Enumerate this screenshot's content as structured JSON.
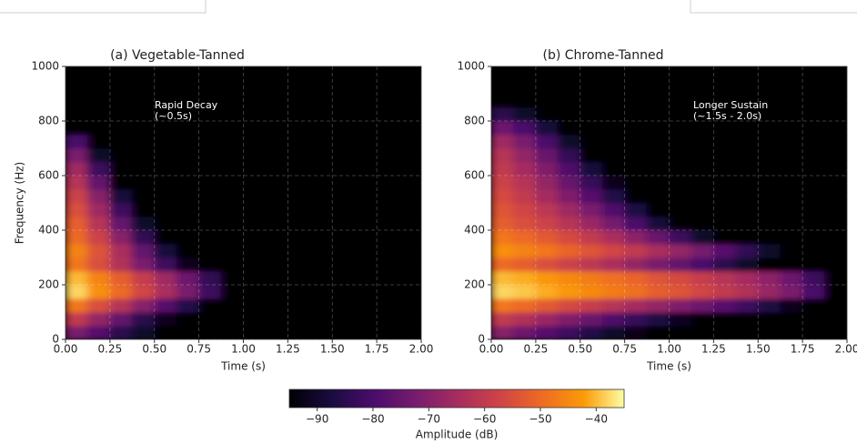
{
  "chart_data": [
    {
      "type": "heatmap",
      "title": "(a) Vegetable-Tanned",
      "x_label": "Time (s)",
      "y_label": "Frequency (Hz)",
      "annotation": [
        "Rapid Decay",
        "(~0.5s)"
      ],
      "xlim": [
        0,
        2
      ],
      "ylim": [
        0,
        1000
      ],
      "xticks": [
        {
          "value": 0,
          "label": "0.00"
        },
        {
          "value": 0.25,
          "label": "0.25"
        },
        {
          "value": 0.5,
          "label": "0.50"
        },
        {
          "value": 0.75,
          "label": "0.75"
        },
        {
          "value": 1,
          "label": "1.00"
        },
        {
          "value": 1.25,
          "label": "1.25"
        },
        {
          "value": 1.5,
          "label": "1.50"
        },
        {
          "value": 1.75,
          "label": "1.75"
        },
        {
          "value": 2,
          "label": "2.00"
        }
      ],
      "yticks": [
        0,
        200,
        400,
        600,
        800,
        1000
      ],
      "grid": true,
      "xbins": [
        0,
        0.125,
        0.25,
        0.375,
        0.5,
        0.625,
        0.75,
        0.875,
        1,
        1.125,
        1.25,
        1.375,
        1.5,
        1.625,
        1.75,
        1.875,
        2
      ],
      "ybins": [
        0,
        50,
        100,
        150,
        200,
        250,
        300,
        350,
        400,
        450,
        500,
        550,
        600,
        650,
        700,
        750,
        800,
        850,
        900,
        950,
        1000
      ],
      "z": [
        [
          -72,
          -78,
          -85,
          -90,
          -95,
          -95,
          -95,
          -95,
          -95,
          -95,
          -95,
          -95,
          -95,
          -95,
          -95,
          -95
        ],
        [
          -60,
          -68,
          -76,
          -85,
          -92,
          -95,
          -95,
          -95,
          -95,
          -95,
          -95,
          -95,
          -95,
          -95,
          -95,
          -95
        ],
        [
          -48,
          -55,
          -62,
          -70,
          -78,
          -86,
          -95,
          -95,
          -95,
          -95,
          -95,
          -95,
          -95,
          -95,
          -95,
          -95
        ],
        [
          -38,
          -44,
          -50,
          -57,
          -64,
          -72,
          -82,
          -95,
          -95,
          -95,
          -95,
          -95,
          -95,
          -95,
          -95,
          -95
        ],
        [
          -40,
          -46,
          -52,
          -59,
          -66,
          -74,
          -84,
          -95,
          -95,
          -95,
          -95,
          -95,
          -95,
          -95,
          -95,
          -95
        ],
        [
          -48,
          -55,
          -63,
          -72,
          -82,
          -92,
          -95,
          -95,
          -95,
          -95,
          -95,
          -95,
          -95,
          -95,
          -95,
          -95
        ],
        [
          -46,
          -54,
          -64,
          -76,
          -88,
          -95,
          -95,
          -95,
          -95,
          -95,
          -95,
          -95,
          -95,
          -95,
          -95,
          -95
        ],
        [
          -50,
          -58,
          -70,
          -84,
          -95,
          -95,
          -95,
          -95,
          -95,
          -95,
          -95,
          -95,
          -95,
          -95,
          -95,
          -95
        ],
        [
          -52,
          -62,
          -76,
          -90,
          -95,
          -95,
          -95,
          -95,
          -95,
          -95,
          -95,
          -95,
          -95,
          -95,
          -95,
          -95
        ],
        [
          -55,
          -66,
          -82,
          -95,
          -95,
          -95,
          -95,
          -95,
          -95,
          -95,
          -95,
          -95,
          -95,
          -95,
          -95,
          -95
        ],
        [
          -58,
          -70,
          -88,
          -95,
          -95,
          -95,
          -95,
          -95,
          -95,
          -95,
          -95,
          -95,
          -95,
          -95,
          -95,
          -95
        ],
        [
          -62,
          -76,
          -95,
          -95,
          -95,
          -95,
          -95,
          -95,
          -95,
          -95,
          -95,
          -95,
          -95,
          -95,
          -95,
          -95
        ],
        [
          -66,
          -82,
          -95,
          -95,
          -95,
          -95,
          -95,
          -95,
          -95,
          -95,
          -95,
          -95,
          -95,
          -95,
          -95,
          -95
        ],
        [
          -72,
          -90,
          -95,
          -95,
          -95,
          -95,
          -95,
          -95,
          -95,
          -95,
          -95,
          -95,
          -95,
          -95,
          -95,
          -95
        ],
        [
          -80,
          -95,
          -95,
          -95,
          -95,
          -95,
          -95,
          -95,
          -95,
          -95,
          -95,
          -95,
          -95,
          -95,
          -95,
          -95
        ],
        [
          -95,
          -95,
          -95,
          -95,
          -95,
          -95,
          -95,
          -95,
          -95,
          -95,
          -95,
          -95,
          -95,
          -95,
          -95,
          -95
        ],
        [
          -95,
          -95,
          -95,
          -95,
          -95,
          -95,
          -95,
          -95,
          -95,
          -95,
          -95,
          -95,
          -95,
          -95,
          -95,
          -95
        ],
        [
          -95,
          -95,
          -95,
          -95,
          -95,
          -95,
          -95,
          -95,
          -95,
          -95,
          -95,
          -95,
          -95,
          -95,
          -95,
          -95
        ],
        [
          -95,
          -95,
          -95,
          -95,
          -95,
          -95,
          -95,
          -95,
          -95,
          -95,
          -95,
          -95,
          -95,
          -95,
          -95,
          -95
        ],
        [
          -95,
          -95,
          -95,
          -95,
          -95,
          -95,
          -95,
          -95,
          -95,
          -95,
          -95,
          -95,
          -95,
          -95,
          -95,
          -95
        ]
      ]
    },
    {
      "type": "heatmap",
      "title": "(b) Chrome-Tanned",
      "x_label": "Time (s)",
      "annotation": [
        "Longer Sustain",
        "(~1.5s - 2.0s)"
      ],
      "xlim": [
        0,
        2
      ],
      "ylim": [
        0,
        1000
      ],
      "xticks": [
        {
          "value": 0,
          "label": "0.00"
        },
        {
          "value": 0.25,
          "label": "0.25"
        },
        {
          "value": 0.5,
          "label": "0.50"
        },
        {
          "value": 0.75,
          "label": "0.75"
        },
        {
          "value": 1,
          "label": "1.00"
        },
        {
          "value": 1.25,
          "label": "1.25"
        },
        {
          "value": 1.5,
          "label": "1.50"
        },
        {
          "value": 1.75,
          "label": "1.75"
        },
        {
          "value": 2,
          "label": "2.00"
        }
      ],
      "yticks": [
        0,
        200,
        400,
        600,
        800,
        1000
      ],
      "grid": true,
      "xbins": [
        0,
        0.125,
        0.25,
        0.375,
        0.5,
        0.625,
        0.75,
        0.875,
        1,
        1.125,
        1.25,
        1.375,
        1.5,
        1.625,
        1.75,
        1.875,
        2
      ],
      "ybins": [
        0,
        50,
        100,
        150,
        200,
        250,
        300,
        350,
        400,
        450,
        500,
        550,
        600,
        650,
        700,
        750,
        800,
        850,
        900,
        950,
        1000
      ],
      "z": [
        [
          -70,
          -74,
          -78,
          -82,
          -86,
          -90,
          -93,
          -95,
          -95,
          -95,
          -95,
          -95,
          -95,
          -95,
          -95,
          -95
        ],
        [
          -60,
          -63,
          -67,
          -71,
          -75,
          -79,
          -83,
          -87,
          -91,
          -95,
          -95,
          -95,
          -95,
          -95,
          -95,
          -95
        ],
        [
          -48,
          -50,
          -53,
          -56,
          -59,
          -62,
          -65,
          -68,
          -71,
          -74,
          -78,
          -82,
          -87,
          -92,
          -95,
          -95
        ],
        [
          -38,
          -39,
          -41,
          -43,
          -45,
          -47,
          -49,
          -52,
          -54,
          -57,
          -60,
          -63,
          -67,
          -72,
          -80,
          -95
        ],
        [
          -40,
          -41,
          -43,
          -45,
          -47,
          -49,
          -51,
          -54,
          -56,
          -59,
          -62,
          -65,
          -69,
          -74,
          -82,
          -95
        ],
        [
          -50,
          -52,
          -55,
          -58,
          -61,
          -64,
          -68,
          -72,
          -76,
          -80,
          -85,
          -90,
          -95,
          -95,
          -95,
          -95
        ],
        [
          -44,
          -46,
          -48,
          -51,
          -54,
          -57,
          -60,
          -64,
          -68,
          -73,
          -78,
          -84,
          -90,
          -95,
          -95,
          -95
        ],
        [
          -48,
          -50,
          -53,
          -56,
          -60,
          -64,
          -69,
          -75,
          -82,
          -90,
          -95,
          -95,
          -95,
          -95,
          -95,
          -95
        ],
        [
          -52,
          -55,
          -58,
          -62,
          -67,
          -73,
          -80,
          -88,
          -95,
          -95,
          -95,
          -95,
          -95,
          -95,
          -95,
          -95
        ],
        [
          -54,
          -57,
          -61,
          -66,
          -72,
          -79,
          -87,
          -95,
          -95,
          -95,
          -95,
          -95,
          -95,
          -95,
          -95,
          -95
        ],
        [
          -56,
          -60,
          -65,
          -71,
          -78,
          -86,
          -95,
          -95,
          -95,
          -95,
          -95,
          -95,
          -95,
          -95,
          -95,
          -95
        ],
        [
          -58,
          -62,
          -68,
          -75,
          -83,
          -92,
          -95,
          -95,
          -95,
          -95,
          -95,
          -95,
          -95,
          -95,
          -95,
          -95
        ],
        [
          -60,
          -65,
          -71,
          -79,
          -88,
          -95,
          -95,
          -95,
          -95,
          -95,
          -95,
          -95,
          -95,
          -95,
          -95,
          -95
        ],
        [
          -62,
          -68,
          -75,
          -84,
          -95,
          -95,
          -95,
          -95,
          -95,
          -95,
          -95,
          -95,
          -95,
          -95,
          -95,
          -95
        ],
        [
          -66,
          -72,
          -80,
          -90,
          -95,
          -95,
          -95,
          -95,
          -95,
          -95,
          -95,
          -95,
          -95,
          -95,
          -95,
          -95
        ],
        [
          -74,
          -80,
          -88,
          -95,
          -95,
          -95,
          -95,
          -95,
          -95,
          -95,
          -95,
          -95,
          -95,
          -95,
          -95,
          -95
        ],
        [
          -85,
          -90,
          -95,
          -95,
          -95,
          -95,
          -95,
          -95,
          -95,
          -95,
          -95,
          -95,
          -95,
          -95,
          -95,
          -95
        ],
        [
          -95,
          -95,
          -95,
          -95,
          -95,
          -95,
          -95,
          -95,
          -95,
          -95,
          -95,
          -95,
          -95,
          -95,
          -95,
          -95
        ],
        [
          -95,
          -95,
          -95,
          -95,
          -95,
          -95,
          -95,
          -95,
          -95,
          -95,
          -95,
          -95,
          -95,
          -95,
          -95,
          -95
        ],
        [
          -95,
          -95,
          -95,
          -95,
          -95,
          -95,
          -95,
          -95,
          -95,
          -95,
          -95,
          -95,
          -95,
          -95,
          -95,
          -95
        ]
      ]
    }
  ],
  "colorbar": {
    "label": "Amplitude (dB)",
    "colormap": "inferno",
    "clim": [
      -95,
      -35
    ],
    "ticks": [
      {
        "value": -90,
        "label": "−90"
      },
      {
        "value": -80,
        "label": "−80"
      },
      {
        "value": -70,
        "label": "−70"
      },
      {
        "value": -60,
        "label": "−60"
      },
      {
        "value": -50,
        "label": "−50"
      },
      {
        "value": -40,
        "label": "−40"
      }
    ]
  }
}
